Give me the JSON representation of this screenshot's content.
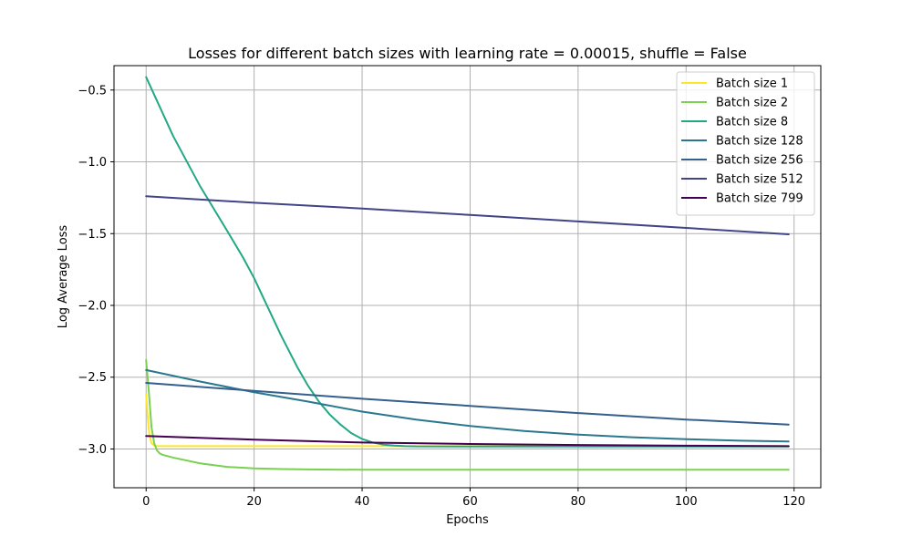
{
  "chart_data": {
    "type": "line",
    "title": "Losses for different batch sizes with learning rate = 0.00015, shuffle = False",
    "xlabel": "Epochs",
    "ylabel": "Log Average Loss",
    "xlim": [
      -5.95,
      124.95
    ],
    "ylim": [
      -3.27,
      -0.33
    ],
    "xticks": [
      0,
      20,
      40,
      60,
      80,
      100,
      120
    ],
    "yticks": [
      -3.0,
      -2.5,
      -2.0,
      -1.5,
      -1.0,
      -0.5
    ],
    "xtick_labels": [
      "0",
      "20",
      "40",
      "60",
      "80",
      "100",
      "120"
    ],
    "ytick_labels": [
      "−3.0",
      "−2.5",
      "−2.0",
      "−1.5",
      "−1.0",
      "−0.5"
    ],
    "grid": true,
    "legend_position": "top-right",
    "series": [
      {
        "name": "Batch size 1",
        "color": "#fde725",
        "x": [
          0,
          0.3,
          0.6,
          1,
          1.5,
          2,
          3,
          5,
          10,
          20,
          40,
          60,
          80,
          100,
          119
        ],
        "y": [
          -2.62,
          -2.78,
          -2.9,
          -2.96,
          -2.975,
          -2.98,
          -2.98,
          -2.98,
          -2.98,
          -2.98,
          -2.98,
          -2.98,
          -2.98,
          -2.98,
          -2.98
        ]
      },
      {
        "name": "Batch size 2",
        "color": "#7ad151",
        "x": [
          0,
          0.5,
          1,
          1.5,
          2,
          2.5,
          3,
          5,
          10,
          15,
          20,
          25,
          30,
          40,
          60,
          80,
          100,
          119
        ],
        "y": [
          -2.38,
          -2.6,
          -2.85,
          -2.96,
          -3.01,
          -3.03,
          -3.04,
          -3.06,
          -3.1,
          -3.125,
          -3.135,
          -3.14,
          -3.142,
          -3.145,
          -3.145,
          -3.145,
          -3.145,
          -3.145
        ]
      },
      {
        "name": "Batch size 8",
        "color": "#22a884",
        "x": [
          0,
          5,
          10,
          15,
          18,
          20,
          22,
          25,
          28,
          30,
          32,
          34,
          36,
          38,
          40,
          42,
          44,
          46,
          48,
          50,
          60,
          80,
          100,
          119
        ],
        "y": [
          -0.41,
          -0.82,
          -1.17,
          -1.48,
          -1.67,
          -1.81,
          -1.97,
          -2.21,
          -2.43,
          -2.56,
          -2.67,
          -2.76,
          -2.83,
          -2.89,
          -2.93,
          -2.955,
          -2.97,
          -2.976,
          -2.98,
          -2.982,
          -2.983,
          -2.983,
          -2.983,
          -2.983
        ]
      },
      {
        "name": "Batch size 128",
        "color": "#2a788e",
        "x": [
          0,
          10,
          20,
          30,
          40,
          50,
          60,
          70,
          80,
          90,
          100,
          110,
          119
        ],
        "y": [
          -2.45,
          -2.53,
          -2.605,
          -2.67,
          -2.74,
          -2.795,
          -2.84,
          -2.875,
          -2.9,
          -2.918,
          -2.932,
          -2.942,
          -2.948
        ]
      },
      {
        "name": "Batch size 256",
        "color": "#355f8d",
        "x": [
          0,
          20,
          40,
          60,
          80,
          100,
          119
        ],
        "y": [
          -2.54,
          -2.595,
          -2.65,
          -2.7,
          -2.75,
          -2.795,
          -2.83
        ]
      },
      {
        "name": "Batch size 512",
        "color": "#414487",
        "x": [
          0,
          20,
          40,
          60,
          80,
          100,
          119
        ],
        "y": [
          -1.24,
          -1.285,
          -1.325,
          -1.37,
          -1.415,
          -1.46,
          -1.505
        ]
      },
      {
        "name": "Batch size 799",
        "color": "#440154",
        "x": [
          0,
          20,
          40,
          60,
          80,
          100,
          119
        ],
        "y": [
          -2.91,
          -2.935,
          -2.955,
          -2.965,
          -2.972,
          -2.977,
          -2.98
        ]
      }
    ]
  }
}
